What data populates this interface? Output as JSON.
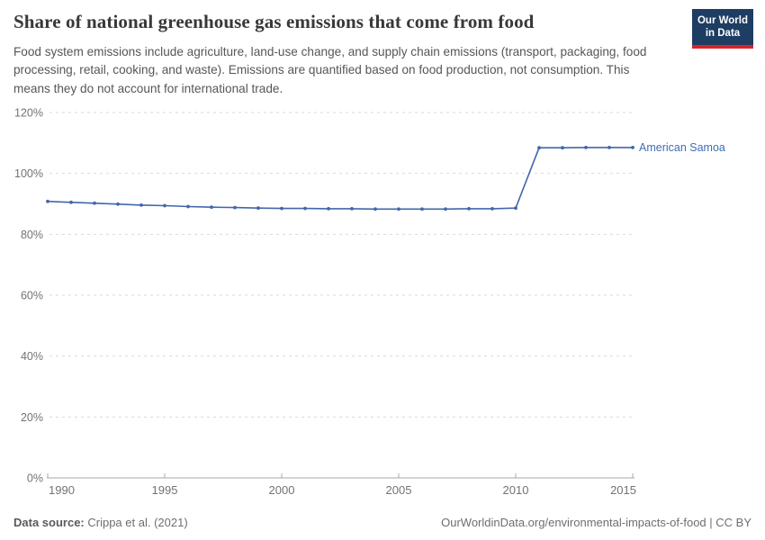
{
  "header": {
    "title": "Share of national greenhouse gas emissions that come from food",
    "subtitle": "Food system emissions include agriculture, land-use change, and supply chain emissions (transport, packaging, food processing, retail, cooking, and waste). Emissions are quantified based on food production, not consumption. This means they do not account for international trade.",
    "logo": {
      "line1": "Our World",
      "line2": "in Data",
      "bg_color": "#1d3d63",
      "accent_color": "#d8232a"
    }
  },
  "chart_data": {
    "type": "line",
    "title": "Share of national greenhouse gas emissions that come from food",
    "xlabel": "",
    "ylabel": "",
    "xlim": [
      1990,
      2015
    ],
    "ylim": [
      0,
      120
    ],
    "x_ticks": [
      1990,
      1995,
      2000,
      2005,
      2010,
      2015
    ],
    "y_ticks": [
      0,
      20,
      40,
      60,
      80,
      100,
      120
    ],
    "y_tick_suffix": "%",
    "grid": "horizontal-dashed",
    "legend_position": "end-of-line-label",
    "series": [
      {
        "name": "American Samoa",
        "color": "#4267a8",
        "label_color": "#3f6db6",
        "x": [
          1990,
          1991,
          1992,
          1993,
          1994,
          1995,
          1996,
          1997,
          1998,
          1999,
          2000,
          2001,
          2002,
          2003,
          2004,
          2005,
          2006,
          2007,
          2008,
          2009,
          2010,
          2011,
          2012,
          2013,
          2014,
          2015
        ],
        "values": [
          90.8,
          90.5,
          90.2,
          89.9,
          89.6,
          89.4,
          89.1,
          88.9,
          88.8,
          88.6,
          88.5,
          88.5,
          88.4,
          88.4,
          88.3,
          88.3,
          88.3,
          88.3,
          88.4,
          88.4,
          88.6,
          108.4,
          108.4,
          108.5,
          108.5,
          108.5
        ]
      }
    ],
    "colors": {
      "grid": "#d9d9d9",
      "axis": "#a8a8a8",
      "tick_label": "#737373"
    }
  },
  "footer": {
    "source_label": "Data source:",
    "source_value": " Crippa et al. (2021)",
    "attribution": "OurWorldinData.org/environmental-impacts-of-food | CC BY"
  }
}
